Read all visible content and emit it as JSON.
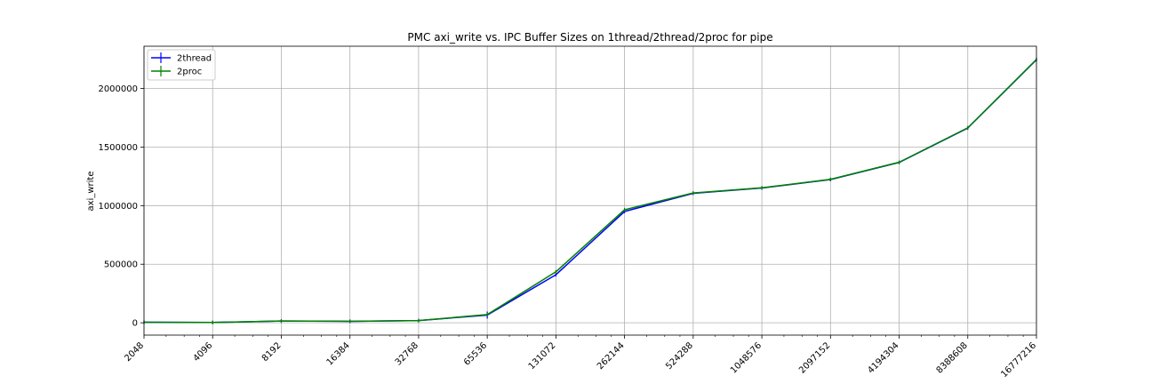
{
  "chart_data": {
    "type": "line",
    "title": "PMC axi_write vs. IPC Buffer Sizes on 1thread/2thread/2proc for pipe",
    "xlabel": "",
    "ylabel": "axi_write",
    "x_scale": "log2",
    "x": [
      2048,
      4096,
      8192,
      16384,
      32768,
      65536,
      131072,
      262144,
      524288,
      1048576,
      2097152,
      4194304,
      8388608,
      16777216
    ],
    "x_tick_labels": [
      "2048",
      "4096",
      "8192",
      "16384",
      "32768",
      "65536",
      "131072",
      "262144",
      "524288",
      "1048576",
      "2097152",
      "4194304",
      "8388608",
      "16777216"
    ],
    "xlim": [
      2048,
      16777216
    ],
    "ylim": [
      -105000,
      2360000
    ],
    "y_ticks": [
      0,
      500000,
      1000000,
      1500000,
      2000000
    ],
    "y_tick_labels": [
      "0",
      "500000",
      "1000000",
      "1500000",
      "2000000"
    ],
    "grid": true,
    "legend_position": "top-left",
    "series": [
      {
        "name": "2thread",
        "color": "#0000ff",
        "values": [
          5000,
          3000,
          15000,
          13000,
          19000,
          66000,
          410000,
          950000,
          1105000,
          1150000,
          1222000,
          1368000,
          1662000,
          2245000
        ],
        "error": [
          0,
          0,
          0,
          0,
          0,
          15000,
          0,
          0,
          0,
          0,
          0,
          0,
          0,
          0
        ]
      },
      {
        "name": "2proc",
        "color": "#008000",
        "values": [
          5000,
          3000,
          15000,
          13000,
          19000,
          70000,
          435000,
          965000,
          1108000,
          1152000,
          1224000,
          1370000,
          1664000,
          2247000
        ],
        "error": [
          0,
          0,
          0,
          0,
          0,
          0,
          0,
          0,
          0,
          0,
          0,
          0,
          0,
          0
        ]
      }
    ]
  }
}
